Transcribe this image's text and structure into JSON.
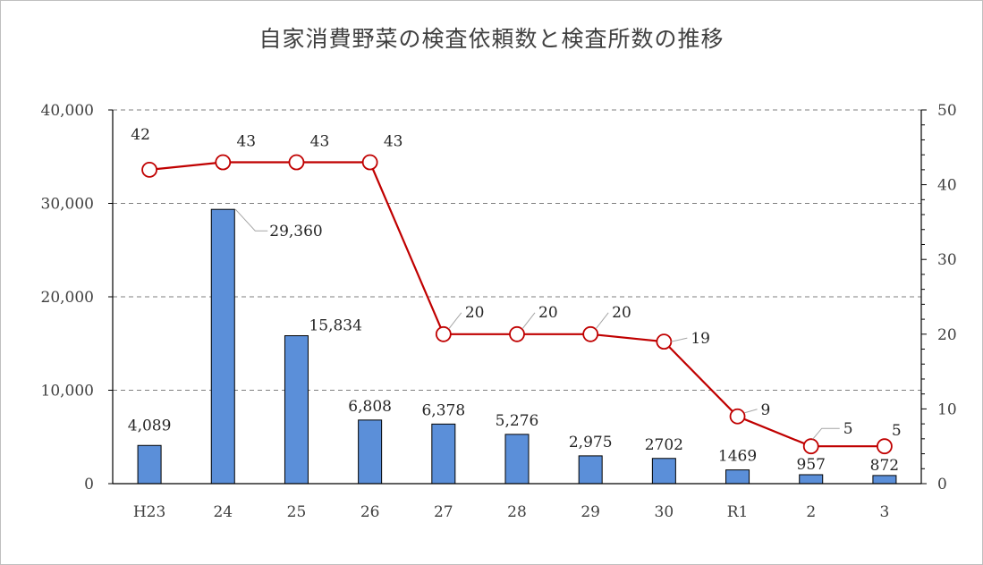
{
  "chart_data": {
    "type": "bar",
    "title": "自家消費野菜の検査依頼数と検査所数の推移",
    "categories": [
      "H23",
      "24",
      "25",
      "26",
      "27",
      "28",
      "29",
      "30",
      "R1",
      "2",
      "3"
    ],
    "series": [
      {
        "chart": "bar",
        "axis": "left",
        "values": [
          4089,
          29360,
          15834,
          6808,
          6378,
          5276,
          2975,
          2702,
          1469,
          957,
          872
        ],
        "labels": [
          "4,089",
          "29,360",
          "15,834",
          "6,808",
          "6,378",
          "5,276",
          "2,975",
          "2702",
          "1469",
          "957",
          "872"
        ],
        "color": "#5b8fd9"
      },
      {
        "chart": "line",
        "axis": "right",
        "values": [
          42,
          43,
          43,
          43,
          20,
          20,
          20,
          19,
          9,
          5,
          5
        ],
        "labels": [
          "42",
          "43",
          "43",
          "43",
          "20",
          "20",
          "20",
          "19",
          "9",
          "5",
          "5"
        ],
        "color": "#c00000"
      }
    ],
    "y_left": {
      "min": 0,
      "max": 40000,
      "ticks": [
        "0",
        "10,000",
        "20,000",
        "30,000",
        "40,000"
      ]
    },
    "y_right": {
      "min": 0,
      "max": 50,
      "ticks": [
        "0",
        "10",
        "20",
        "30",
        "40",
        "50"
      ]
    },
    "grid": true,
    "grid_style": "dashed",
    "legend": "none"
  }
}
